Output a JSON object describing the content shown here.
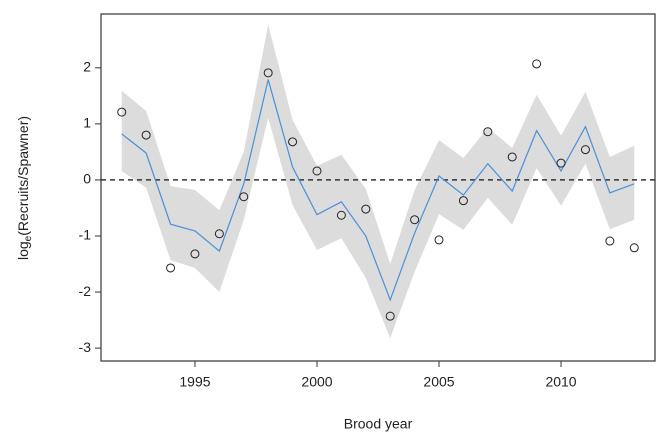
{
  "chart_data": {
    "type": "line",
    "xlabel": "Brood year",
    "ylabel": {
      "base": "log",
      "subscript": "e",
      "rest": "(Recruits/Spawner)"
    },
    "x": [
      1992,
      1993,
      1994,
      1995,
      1996,
      1997,
      1998,
      1999,
      2000,
      2001,
      2002,
      2003,
      2004,
      2005,
      2006,
      2007,
      2008,
      2009,
      2010,
      2011,
      2012,
      2013
    ],
    "band": {
      "color": "#dcdcdc",
      "upper": [
        1.59,
        1.23,
        -0.11,
        -0.18,
        -0.54,
        0.5,
        2.77,
        1.07,
        0.25,
        0.45,
        -0.16,
        -1.5,
        -0.18,
        0.71,
        0.39,
        0.93,
        0.57,
        1.52,
        0.79,
        1.57,
        0.41,
        0.61
      ],
      "lower": [
        0.16,
        -0.14,
        -1.43,
        -1.57,
        -2.0,
        -0.71,
        1.11,
        -0.45,
        -1.25,
        -1.04,
        -1.75,
        -2.82,
        -1.64,
        -0.61,
        -0.89,
        -0.32,
        -0.8,
        0.21,
        -0.46,
        0.29,
        -0.88,
        -0.71
      ]
    },
    "series": [
      {
        "color": "#4a90d9",
        "values": [
          0.82,
          0.48,
          -0.79,
          -0.91,
          -1.27,
          -0.07,
          1.79,
          0.23,
          -0.62,
          -0.39,
          -1.0,
          -2.14,
          -0.95,
          0.07,
          -0.27,
          0.29,
          -0.2,
          0.88,
          0.16,
          0.95,
          -0.23,
          -0.07
        ]
      },
      {
        "color": "#222222",
        "marker": "circle",
        "values": [
          1.21,
          0.8,
          -1.57,
          -1.32,
          -0.96,
          -0.3,
          1.91,
          0.68,
          0.16,
          -0.63,
          -0.52,
          -2.43,
          -0.71,
          -1.07,
          -0.37,
          0.86,
          0.41,
          2.07,
          0.3,
          0.54,
          -1.09,
          -1.21
        ]
      }
    ],
    "hline": 0,
    "xlim": [
      1991.15,
      2013.85
    ],
    "xticks": [
      1995,
      2000,
      2005,
      2010
    ],
    "ylim": [
      -3.23,
      2.96
    ],
    "yticks": [
      -3,
      -2,
      -1,
      0,
      1,
      2
    ]
  }
}
